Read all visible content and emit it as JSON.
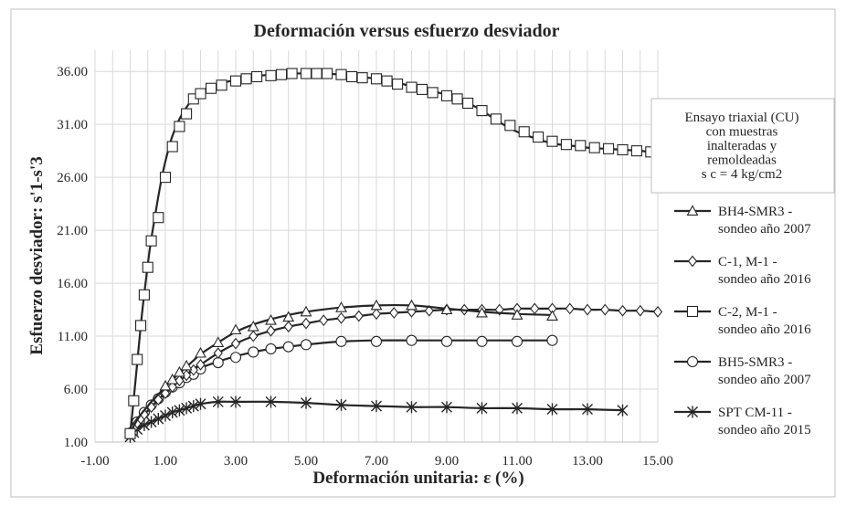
{
  "chart_data": {
    "type": "line",
    "title": "Deformación versus esfuerzo desviador",
    "xlabel": "Deformación unitaria: ε (%)",
    "ylabel": "Esfuerzo desviador: s'1-s'3",
    "xlim": [
      -1,
      15
    ],
    "ylim": [
      1,
      38
    ],
    "x_ticks": [
      "-1.00",
      "1.00",
      "3.00",
      "5.00",
      "7.00",
      "9.00",
      "11.00",
      "13.00",
      "15.00"
    ],
    "y_ticks": [
      "1.00",
      "6.00",
      "11.00",
      "16.00",
      "21.00",
      "26.00",
      "31.00",
      "36.00"
    ],
    "grid": true,
    "legend_position": "right",
    "note": {
      "lines": [
        "Ensayo triaxial (CU)",
        "con muestras",
        "inalteradas y",
        "remoldeadas",
        "s c = 4 kg/cm2"
      ]
    },
    "colors": {
      "series": "#262626",
      "grid": "#d9d9d9",
      "frame": "#bfbfbf"
    },
    "series": [
      {
        "name": "BH4-SMR3 - sondeo año 2007",
        "legend_lines": [
          "BH4-SMR3 -",
          "sondeo año 2007"
        ],
        "marker": "triangle",
        "x": [
          0,
          0.1,
          0.2,
          0.3,
          0.4,
          0.5,
          0.6,
          0.8,
          1.0,
          1.2,
          1.4,
          1.6,
          1.8,
          2.0,
          2.5,
          3.0,
          3.5,
          4.0,
          4.5,
          5.0,
          6.0,
          7.0,
          8.0,
          9.0,
          10.0,
          11.0,
          12.0
        ],
        "y": [
          1.8,
          2.5,
          3.1,
          3.6,
          4.0,
          4.4,
          4.8,
          5.5,
          6.2,
          6.9,
          7.5,
          8.1,
          8.7,
          9.3,
          10.4,
          11.4,
          12.1,
          12.6,
          13.0,
          13.3,
          13.7,
          13.9,
          13.9,
          13.6,
          13.3,
          13.1,
          13.0
        ],
        "marker_x": [
          1.0,
          1.2,
          1.4,
          1.6,
          2.0,
          2.5,
          3.0,
          3.5,
          4.0,
          4.5,
          5.0,
          6.0,
          7.0,
          8.0,
          9.0,
          10.0,
          11.0,
          12.0
        ],
        "marker_y": [
          6.3,
          6.9,
          7.6,
          8.2,
          9.4,
          10.4,
          11.6,
          11.9,
          12.5,
          12.8,
          13.3,
          13.7,
          13.9,
          13.9,
          13.5,
          13.2,
          13.0,
          12.9
        ]
      },
      {
        "name": "C-1, M-1 - sondeo año 2016",
        "legend_lines": [
          "C-1, M-1  -",
          "sondeo año 2016"
        ],
        "marker": "diamond",
        "x": [
          0,
          0.2,
          0.4,
          0.6,
          0.8,
          1.0,
          1.3,
          1.6,
          2.0,
          2.5,
          3.0,
          3.5,
          4.0,
          4.5,
          5.0,
          5.5,
          6.0,
          6.5,
          7.0,
          7.5,
          8.0,
          8.5,
          9.0,
          9.5,
          10.0,
          10.5,
          11.0,
          11.5,
          12.0,
          12.5,
          13.0,
          13.5,
          14.0,
          14.5,
          15.0
        ],
        "y": [
          1.8,
          2.8,
          3.6,
          4.3,
          5.0,
          5.6,
          6.5,
          7.3,
          8.3,
          9.4,
          10.3,
          11.0,
          11.5,
          11.9,
          12.2,
          12.5,
          12.7,
          12.9,
          13.1,
          13.2,
          13.3,
          13.4,
          13.5,
          13.5,
          13.5,
          13.5,
          13.6,
          13.6,
          13.6,
          13.6,
          13.5,
          13.5,
          13.4,
          13.4,
          13.3
        ],
        "marker_x": [
          0.1,
          0.2,
          0.3,
          0.4,
          0.6,
          0.8,
          1.0,
          1.2,
          1.4,
          1.6,
          1.8,
          2.0,
          2.5,
          3.0,
          3.5,
          4.0,
          4.5,
          5.0,
          5.5,
          6.0,
          6.5,
          7.0,
          7.5,
          8.0,
          8.5,
          9.0,
          9.5,
          10.0,
          10.5,
          11.0,
          11.5,
          12.0,
          12.5,
          13.0,
          13.5,
          14.0,
          14.5,
          15.0
        ],
        "marker_y": [
          2.3,
          2.8,
          3.2,
          3.6,
          4.3,
          5.0,
          5.6,
          6.2,
          6.8,
          7.3,
          7.8,
          8.3,
          9.4,
          10.3,
          11.0,
          11.5,
          11.9,
          12.2,
          12.5,
          12.7,
          12.9,
          13.1,
          13.2,
          13.3,
          13.4,
          13.5,
          13.5,
          13.5,
          13.5,
          13.6,
          13.6,
          13.6,
          13.6,
          13.5,
          13.5,
          13.4,
          13.4,
          13.3
        ]
      },
      {
        "name": "C-2, M-1 - sondeo año 2016",
        "legend_lines": [
          "C-2, M-1  -",
          "sondeo año 2016"
        ],
        "marker": "square",
        "x": [
          0,
          0.1,
          0.2,
          0.3,
          0.4,
          0.5,
          0.6,
          0.7,
          0.8,
          0.9,
          1.0,
          1.1,
          1.2,
          1.4,
          1.6,
          1.8,
          2.0,
          2.5,
          3.0,
          3.5,
          4.0,
          4.5,
          5.0,
          5.5,
          6.0,
          6.5,
          7.0,
          7.5,
          8.0,
          8.5,
          9.0,
          9.5,
          10.0,
          10.5,
          11.0,
          11.5,
          12.0,
          12.5,
          13.0,
          13.5,
          14.0,
          14.5,
          15.0
        ],
        "y": [
          1.8,
          5.0,
          8.5,
          12.0,
          15.0,
          17.8,
          20.2,
          22.2,
          24.2,
          26.0,
          27.5,
          28.8,
          29.9,
          31.5,
          32.6,
          33.5,
          34.1,
          34.8,
          35.2,
          35.5,
          35.7,
          35.8,
          35.8,
          35.8,
          35.7,
          35.5,
          35.3,
          35.0,
          34.6,
          34.2,
          33.8,
          33.2,
          32.3,
          31.2,
          30.3,
          29.7,
          29.2,
          29.0,
          28.8,
          28.7,
          28.6,
          28.5,
          28.3
        ],
        "marker_x": [
          0,
          0.1,
          0.2,
          0.3,
          0.4,
          0.5,
          0.6,
          0.8,
          1.0,
          1.2,
          1.4,
          1.6,
          1.8,
          2.0,
          2.3,
          2.6,
          3.0,
          3.3,
          3.6,
          4.0,
          4.3,
          4.6,
          5.0,
          5.3,
          5.6,
          6.0,
          6.3,
          6.6,
          7.0,
          7.3,
          7.6,
          8.0,
          8.3,
          8.6,
          9.0,
          9.3,
          9.6,
          10.0,
          10.4,
          10.8,
          11.2,
          11.6,
          12.0,
          12.4,
          12.8,
          13.2,
          13.6,
          14.0,
          14.4,
          14.8,
          15.0
        ],
        "marker_y": [
          1.8,
          4.9,
          8.8,
          12.0,
          14.9,
          17.5,
          20.0,
          22.2,
          26.0,
          28.9,
          30.8,
          32.0,
          33.4,
          33.9,
          34.4,
          34.7,
          35.1,
          35.3,
          35.5,
          35.6,
          35.7,
          35.8,
          35.8,
          35.8,
          35.8,
          35.7,
          35.5,
          35.4,
          35.3,
          35.1,
          34.8,
          34.5,
          34.3,
          34.0,
          33.7,
          33.4,
          33.0,
          32.3,
          31.5,
          30.9,
          30.3,
          29.8,
          29.4,
          29.1,
          29.0,
          28.8,
          28.7,
          28.6,
          28.5,
          28.4,
          28.2
        ]
      },
      {
        "name": "BH5-SMR3 - sondeo año 2007",
        "legend_lines": [
          "BH5-SMR3 -",
          "sondeo año 2007"
        ],
        "marker": "circle",
        "x": [
          0,
          0.2,
          0.4,
          0.6,
          0.8,
          1.0,
          1.2,
          1.4,
          1.6,
          1.8,
          2.0,
          2.5,
          3.0,
          3.5,
          4.0,
          4.5,
          5.0,
          6.0,
          7.0,
          8.0,
          9.0,
          10.0,
          11.0,
          12.0
        ],
        "y": [
          1.8,
          2.9,
          3.8,
          4.6,
          5.2,
          5.8,
          6.3,
          6.8,
          7.2,
          7.6,
          8.0,
          8.6,
          9.1,
          9.5,
          9.8,
          10.0,
          10.2,
          10.5,
          10.6,
          10.6,
          10.6,
          10.6,
          10.6,
          10.6
        ],
        "marker_x": [
          0,
          0.2,
          0.4,
          0.6,
          0.8,
          1.0,
          1.2,
          1.4,
          1.6,
          1.8,
          2.0,
          2.5,
          3.0,
          3.5,
          4.0,
          4.5,
          5.0,
          6.0,
          7.0,
          8.0,
          9.0,
          10.0,
          11.0,
          12.0
        ],
        "marker_y": [
          1.8,
          2.9,
          3.8,
          4.5,
          5.1,
          5.7,
          6.2,
          6.6,
          7.1,
          7.4,
          7.9,
          8.5,
          9.0,
          9.5,
          9.8,
          10.0,
          10.2,
          10.5,
          10.5,
          10.6,
          10.5,
          10.5,
          10.5,
          10.6
        ]
      },
      {
        "name": "SPT CM-11 - sondeo año 2015",
        "legend_lines": [
          "SPT CM-11 -",
          "sondeo año 2015"
        ],
        "marker": "star",
        "x": [
          0,
          0.2,
          0.4,
          0.6,
          0.8,
          1.0,
          1.2,
          1.4,
          1.6,
          1.8,
          2.0,
          2.5,
          3.0,
          4.0,
          5.0,
          6.0,
          7.0,
          8.0,
          9.0,
          10.0,
          11.0,
          12.0,
          13.0,
          14.0
        ],
        "y": [
          1.6,
          2.2,
          2.6,
          2.9,
          3.2,
          3.5,
          3.8,
          4.0,
          4.2,
          4.4,
          4.6,
          4.8,
          4.8,
          4.8,
          4.7,
          4.5,
          4.4,
          4.3,
          4.3,
          4.2,
          4.2,
          4.1,
          4.1,
          4.0
        ],
        "marker_x": [
          0,
          0.1,
          0.2,
          0.4,
          0.6,
          0.8,
          1.0,
          1.2,
          1.4,
          1.6,
          1.8,
          2.0,
          2.5,
          3.0,
          4.0,
          5.0,
          6.0,
          7.0,
          8.0,
          9.0,
          10.0,
          11.0,
          12.0,
          13.0,
          14.0
        ],
        "marker_y": [
          1.5,
          1.9,
          2.2,
          2.6,
          2.9,
          3.2,
          3.5,
          3.8,
          4.0,
          4.2,
          4.4,
          4.6,
          4.8,
          4.8,
          4.8,
          4.7,
          4.5,
          4.4,
          4.3,
          4.3,
          4.2,
          4.2,
          4.1,
          4.1,
          4.0
        ]
      }
    ]
  }
}
